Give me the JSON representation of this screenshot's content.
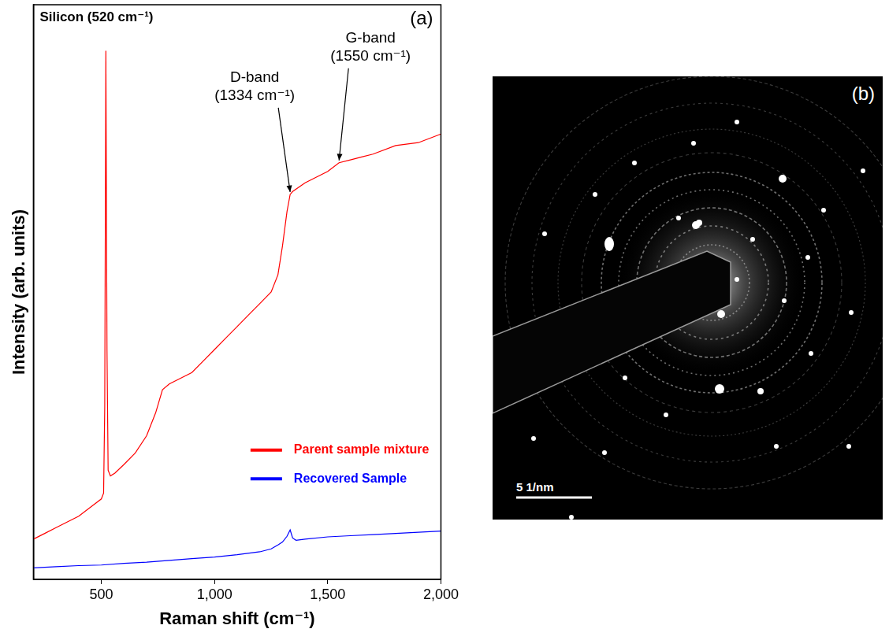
{
  "chart_data": {
    "type": "line",
    "title": "Silicon (520 cm⁻¹)",
    "panel": "(a)",
    "x_label": "Raman shift (cm⁻¹)",
    "y_label": "Intensity (arb. units)",
    "xlim": [
      200,
      2000
    ],
    "xticks": [
      500,
      1000,
      1500,
      2000
    ],
    "ylim": [
      0,
      100
    ],
    "tick_labels": "x",
    "grid": false,
    "legend": "right",
    "series": [
      {
        "name": "Parent sample mixture",
        "color": "#ff0000",
        "x": [
          200,
          250,
          300,
          350,
          400,
          450,
          500,
          510,
          515,
          520,
          525,
          530,
          540,
          560,
          600,
          650,
          700,
          740,
          770,
          800,
          850,
          900,
          950,
          1000,
          1050,
          1100,
          1150,
          1200,
          1250,
          1280,
          1300,
          1320,
          1334,
          1345,
          1400,
          1450,
          1500,
          1550,
          1600,
          1650,
          1700,
          1800,
          1900,
          2000
        ],
        "values": [
          7,
          8,
          9,
          10,
          11,
          12.5,
          14,
          15,
          30,
          92,
          40,
          19,
          18,
          18.5,
          20,
          22,
          25,
          29,
          33,
          34,
          35,
          36,
          38,
          40,
          42,
          44,
          46,
          48,
          50,
          53,
          58,
          64,
          67,
          67.5,
          69,
          70,
          71,
          72.5,
          73,
          73.5,
          74,
          75.5,
          76,
          77.5
        ]
      },
      {
        "name": "Recovered Sample",
        "color": "#0000ff",
        "x": [
          200,
          300,
          400,
          500,
          600,
          700,
          800,
          900,
          1000,
          1100,
          1200,
          1250,
          1280,
          1300,
          1320,
          1334,
          1345,
          1360,
          1400,
          1500,
          1600,
          1700,
          1800,
          1900,
          2000
        ],
        "values": [
          2,
          2.2,
          2.4,
          2.5,
          2.8,
          3,
          3.3,
          3.6,
          3.9,
          4.3,
          4.8,
          5.3,
          6,
          6.5,
          7.5,
          8.6,
          7.2,
          6.8,
          7,
          7.4,
          7.6,
          7.8,
          8,
          8.2,
          8.4
        ]
      }
    ],
    "annotations": [
      {
        "text": "D-band\n(1334 cm⁻¹)",
        "x": 1334,
        "y": 67
      },
      {
        "text": "G-band\n(1550 cm⁻¹)",
        "x": 1550,
        "y": 72.5
      }
    ]
  },
  "image_panel": {
    "panel": "(b)",
    "scale_bar": "5 1/nm"
  }
}
